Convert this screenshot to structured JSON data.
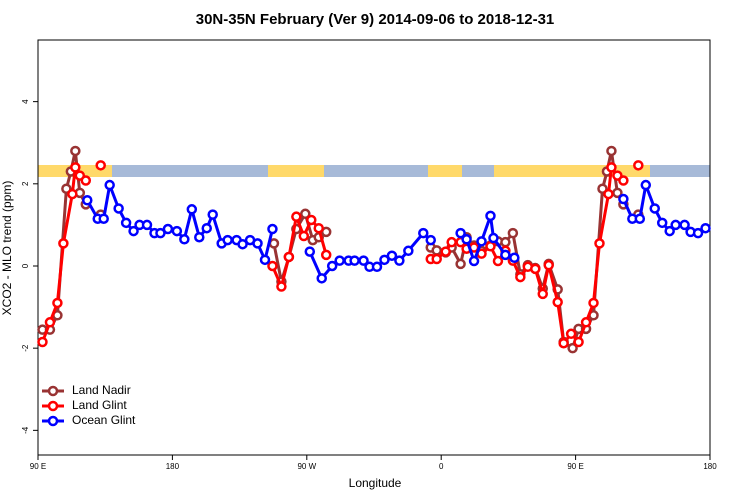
{
  "chart_data": {
    "type": "line",
    "title": "30N-35N February (Ver 9)   2014-09-06 to 2018-12-31",
    "x_label": "Longitude",
    "y_label": "XCO2 - MLO trend (ppm)",
    "xlim": [
      90,
      540
    ],
    "xticks": [
      {
        "value": 90,
        "label": "90 E"
      },
      180,
      {
        "value": 270,
        "label": "90 W"
      },
      {
        "value": 360,
        "label": "0"
      },
      {
        "value": 450,
        "label": "90 E"
      },
      {
        "value": 540,
        "label": "180"
      }
    ],
    "ylim": [
      -4.6,
      5.5
    ],
    "yticks": [
      -4,
      -2,
      0,
      2,
      4
    ],
    "legend": "bottom-left",
    "series": [
      {
        "name": "Land Nadir",
        "color": "#993333",
        "x": [
          93,
          98,
          103,
          109,
          112,
          115,
          118,
          122,
          null,
          132,
          null,
          248,
          253,
          258,
          263,
          269,
          274,
          278,
          283,
          null,
          353,
          357,
          363,
          367,
          373,
          377,
          382,
          387,
          393,
          398,
          403,
          408,
          413,
          418,
          423,
          428,
          432,
          438,
          442,
          448,
          452,
          457,
          462,
          468,
          471,
          474,
          478,
          482,
          null,
          492
        ],
        "values": [
          -1.55,
          -1.55,
          -1.2,
          1.88,
          2.3,
          2.8,
          1.78,
          1.5,
          null,
          1.25,
          null,
          0.55,
          -0.38,
          0.22,
          0.9,
          1.27,
          0.63,
          0.7,
          0.83,
          null,
          0.45,
          0.38,
          0.33,
          0.45,
          0.05,
          0.7,
          0.5,
          0.37,
          0.5,
          0.6,
          0.58,
          0.8,
          -0.2,
          0.02,
          -0.05,
          -0.55,
          0.05,
          -0.57,
          -1.85,
          -2.0,
          -1.53,
          -1.53,
          -1.2,
          1.88,
          2.3,
          2.8,
          1.78,
          1.5,
          null,
          1.25
        ]
      },
      {
        "name": "Land Glint",
        "color": "#ff0000",
        "x": [
          93,
          98,
          103,
          107,
          113,
          115,
          118,
          122,
          null,
          132,
          null,
          247,
          253,
          258,
          263,
          268,
          273,
          278,
          283,
          null,
          353,
          357,
          363,
          367,
          373,
          377,
          382,
          387,
          393,
          398,
          403,
          408,
          413,
          418,
          423,
          428,
          432,
          438,
          442,
          447,
          452,
          457,
          462,
          466,
          472,
          474,
          478,
          482,
          null,
          492
        ],
        "values": [
          -1.85,
          -1.37,
          -0.9,
          0.55,
          1.75,
          2.4,
          2.2,
          2.08,
          null,
          2.45,
          null,
          0,
          -0.5,
          0.22,
          1.2,
          0.73,
          1.12,
          0.92,
          0.27,
          null,
          0.17,
          0.17,
          0.35,
          0.58,
          0.58,
          0.42,
          0.45,
          0.3,
          0.48,
          0.12,
          0.37,
          0.13,
          -0.27,
          -0.02,
          -0.07,
          -0.68,
          0.02,
          -0.88,
          -1.88,
          -1.65,
          -1.85,
          -1.37,
          -0.9,
          0.55,
          1.75,
          2.4,
          2.2,
          2.08,
          null,
          2.45
        ]
      },
      {
        "name": "Ocean Glint",
        "color": "#0000ff",
        "x": [
          123,
          130,
          134,
          138,
          144,
          149,
          154,
          158,
          163,
          168,
          172,
          177,
          183,
          188,
          193,
          198,
          203,
          207,
          213,
          217,
          223,
          227,
          232,
          237,
          242,
          247,
          null,
          272,
          280,
          287,
          292,
          298,
          302,
          308,
          312,
          317,
          322,
          327,
          332,
          338,
          348,
          353,
          null,
          373,
          377,
          382,
          387,
          393,
          395,
          403,
          409,
          null,
          482,
          488,
          493,
          497,
          503,
          508,
          513,
          517,
          523,
          527,
          532,
          537
        ],
        "values": [
          1.6,
          1.15,
          1.15,
          1.97,
          1.4,
          1.05,
          0.85,
          1.0,
          1.0,
          0.8,
          0.8,
          0.9,
          0.85,
          0.65,
          1.38,
          0.7,
          0.92,
          1.25,
          0.55,
          0.63,
          0.63,
          0.53,
          0.63,
          0.55,
          0.15,
          0.9,
          null,
          0.35,
          -0.3,
          0,
          0.13,
          0.13,
          0.13,
          0.13,
          -0.02,
          -0.02,
          0.15,
          0.25,
          0.13,
          0.37,
          0.8,
          0.63,
          null,
          0.8,
          0.65,
          0.12,
          0.6,
          1.22,
          0.68,
          0.27,
          0.2,
          null,
          1.63,
          1.15,
          1.15,
          1.97,
          1.4,
          1.05,
          0.85,
          1.0,
          1.0,
          0.83,
          0.8,
          0.92
        ]
      }
    ]
  }
}
